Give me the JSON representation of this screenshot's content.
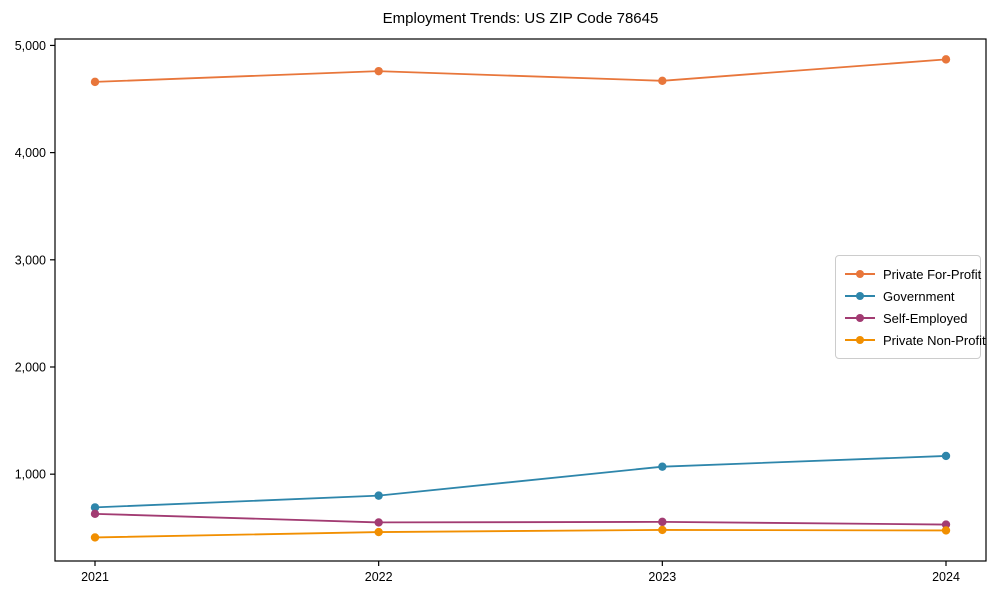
{
  "chart_data": {
    "type": "line",
    "title": "Employment Trends: US ZIP Code 78645",
    "xlabel": "",
    "ylabel": "",
    "categories": [
      "2021",
      "2022",
      "2023",
      "2024"
    ],
    "series": [
      {
        "name": "Private For-Profit",
        "color": "#E8763B",
        "values": [
          4660,
          4760,
          4670,
          4870
        ]
      },
      {
        "name": "Government",
        "color": "#2E86AB",
        "values": [
          690,
          800,
          1070,
          1170
        ]
      },
      {
        "name": "Self-Employed",
        "color": "#A23B72",
        "values": [
          630,
          550,
          555,
          530
        ]
      },
      {
        "name": "Private Non-Profit",
        "color": "#F18F01",
        "values": [
          410,
          460,
          480,
          475
        ]
      }
    ],
    "ylim": [
      190,
      5060
    ],
    "yticks": [
      1000,
      2000,
      3000,
      4000,
      5000
    ],
    "ytick_labels": [
      "1,000",
      "2,000",
      "3,000",
      "4,000",
      "5,000"
    ],
    "grid": false,
    "legend_position": "center-right",
    "marker": "circle",
    "axis_color": "#000000"
  }
}
